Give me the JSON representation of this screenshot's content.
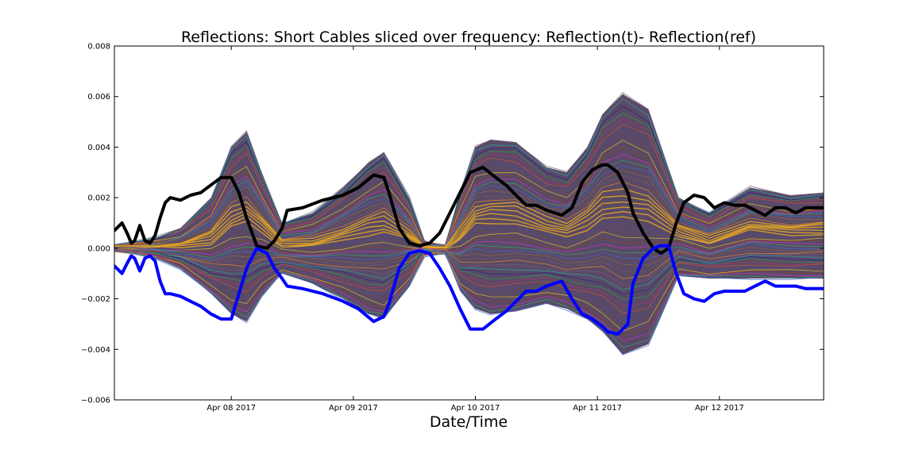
{
  "chart_data": {
    "type": "line",
    "title": "Reflections: Short Cables sliced over frequency: Reflection(t)- Reflection(ref)",
    "xlabel": "Date/Time",
    "ylabel": "",
    "x_range": [
      "2017-04-07 01:00",
      "2017-04-12 20:30"
    ],
    "ylim": [
      -0.006,
      0.008
    ],
    "y_ticks": [
      -0.006,
      -0.004,
      -0.002,
      0.0,
      0.002,
      0.004,
      0.006,
      0.008
    ],
    "y_tick_labels": [
      "−0.006",
      "−0.004",
      "−0.002",
      "0.000",
      "0.002",
      "0.004",
      "0.006",
      "0.008"
    ],
    "x_ticks": [
      {
        "x": "2017-04-08",
        "label": "Apr 08 2017"
      },
      {
        "x": "2017-04-09",
        "label": "Apr 09 2017"
      },
      {
        "x": "2017-04-10",
        "label": "Apr 10 2017"
      },
      {
        "x": "2017-04-11",
        "label": "Apr 11 2017"
      },
      {
        "x": "2017-04-12",
        "label": "Apr 12 2017"
      }
    ],
    "grid": false,
    "envelope": {
      "description": "dense band of many thin colored lines (one per frequency slice)",
      "x": [
        "2017-04-07 01:00",
        "2017-04-07 09:00",
        "2017-04-07 14:00",
        "2017-04-07 20:00",
        "2017-04-08 00:00",
        "2017-04-08 03:00",
        "2017-04-08 06:00",
        "2017-04-08 10:00",
        "2017-04-08 16:00",
        "2017-04-08 22:00",
        "2017-04-09 03:00",
        "2017-04-09 06:00",
        "2017-04-09 11:00",
        "2017-04-09 14:00",
        "2017-04-09 18:00",
        "2017-04-09 21:00",
        "2017-04-10 00:00",
        "2017-04-10 03:00",
        "2017-04-10 08:00",
        "2017-04-10 14:00",
        "2017-04-10 18:00",
        "2017-04-10 22:00",
        "2017-04-11 01:00",
        "2017-04-11 05:00",
        "2017-04-11 10:00",
        "2017-04-11 16:00",
        "2017-04-11 22:00",
        "2017-04-12 06:00",
        "2017-04-12 14:00",
        "2017-04-12 20:30"
      ],
      "upper": [
        0.0001,
        0.0004,
        0.0008,
        0.002,
        0.004,
        0.0046,
        0.003,
        0.001,
        0.0014,
        0.0024,
        0.0034,
        0.0038,
        0.002,
        0.0003,
        0.0001,
        0.0022,
        0.004,
        0.0043,
        0.0042,
        0.0032,
        0.003,
        0.004,
        0.0053,
        0.0061,
        0.0055,
        0.002,
        0.0014,
        0.0024,
        0.0021,
        0.0022
      ],
      "lower": [
        -0.0001,
        -0.0004,
        -0.0008,
        -0.0018,
        -0.0026,
        -0.0029,
        -0.0019,
        -0.001,
        -0.0014,
        -0.002,
        -0.0026,
        -0.0028,
        -0.0015,
        -0.0003,
        -0.0002,
        -0.0017,
        -0.0024,
        -0.0026,
        -0.0025,
        -0.0022,
        -0.0024,
        -0.0028,
        -0.0033,
        -0.0042,
        -0.0038,
        -0.0011,
        -0.0012,
        -0.0012,
        -0.0012,
        -0.0012
      ]
    },
    "series": [
      {
        "color": "#000000",
        "x": [
          "2017-04-07 01:00",
          "2017-04-07 01:30",
          "2017-04-07 02:30",
          "2017-04-07 03:30",
          "2017-04-07 04:20",
          "2017-04-07 05:00",
          "2017-04-07 06:00",
          "2017-04-07 07:00",
          "2017-04-07 08:00",
          "2017-04-07 09:00",
          "2017-04-07 10:00",
          "2017-04-07 11:00",
          "2017-04-07 12:00",
          "2017-04-07 14:00",
          "2017-04-07 16:00",
          "2017-04-07 18:00",
          "2017-04-07 20:00",
          "2017-04-07 22:00",
          "2017-04-08 00:00",
          "2017-04-08 01:30",
          "2017-04-08 03:00",
          "2017-04-08 05:00",
          "2017-04-08 07:00",
          "2017-04-08 08:30",
          "2017-04-08 10:00",
          "2017-04-08 11:00",
          "2017-04-08 14:00",
          "2017-04-08 18:00",
          "2017-04-08 22:00",
          "2017-04-09 01:00",
          "2017-04-09 04:00",
          "2017-04-09 06:00",
          "2017-04-09 07:00",
          "2017-04-09 09:00",
          "2017-04-09 11:00",
          "2017-04-09 13:00",
          "2017-04-09 15:00",
          "2017-04-09 17:00",
          "2017-04-09 19:00",
          "2017-04-09 21:00",
          "2017-04-09 23:00",
          "2017-04-10 01:30",
          "2017-04-10 04:00",
          "2017-04-10 06:00",
          "2017-04-10 08:00",
          "2017-04-10 10:00",
          "2017-04-10 12:00",
          "2017-04-10 14:00",
          "2017-04-10 17:00",
          "2017-04-10 19:00",
          "2017-04-10 21:00",
          "2017-04-10 23:00",
          "2017-04-11 01:00",
          "2017-04-11 02:00",
          "2017-04-11 04:00",
          "2017-04-11 06:00",
          "2017-04-11 07:00",
          "2017-04-11 09:00",
          "2017-04-11 11:00",
          "2017-04-11 12:30",
          "2017-04-11 14:00",
          "2017-04-11 15:30",
          "2017-04-11 17:00",
          "2017-04-11 19:00",
          "2017-04-11 21:00",
          "2017-04-11 23:00",
          "2017-04-12 01:00",
          "2017-04-12 03:00",
          "2017-04-12 05:00",
          "2017-04-12 07:00",
          "2017-04-12 09:00",
          "2017-04-12 11:00",
          "2017-04-12 13:00",
          "2017-04-12 15:00",
          "2017-04-12 17:00",
          "2017-04-12 19:00",
          "2017-04-12 20:30"
        ],
        "values": [
          0.0007,
          0.0008,
          0.001,
          0.0006,
          0.0002,
          0.0003,
          0.0009,
          0.0003,
          0.0002,
          0.0005,
          0.0012,
          0.0018,
          0.002,
          0.0019,
          0.0021,
          0.0022,
          0.0025,
          0.0028,
          0.0028,
          0.0022,
          0.0012,
          0.0001,
          0.0,
          0.0003,
          0.0008,
          0.0015,
          0.0016,
          0.0019,
          0.0021,
          0.0024,
          0.0029,
          0.0028,
          0.0022,
          0.0008,
          0.0002,
          0.0001,
          0.0002,
          0.0006,
          0.0014,
          0.0022,
          0.003,
          0.0032,
          0.0028,
          0.0025,
          0.0021,
          0.0017,
          0.0017,
          0.0015,
          0.0013,
          0.0016,
          0.0026,
          0.0031,
          0.0033,
          0.0033,
          0.003,
          0.0022,
          0.0014,
          0.0006,
          0.0,
          -0.0002,
          0.0,
          0.001,
          0.0018,
          0.0021,
          0.002,
          0.0016,
          0.0018,
          0.0017,
          0.0017,
          0.0015,
          0.0013,
          0.0016,
          0.0016,
          0.0014,
          0.0016,
          0.0016,
          0.0016
        ]
      },
      {
        "color": "#0000ff",
        "x": [
          "2017-04-07 01:00",
          "2017-04-07 01:30",
          "2017-04-07 02:30",
          "2017-04-07 03:30",
          "2017-04-07 04:20",
          "2017-04-07 05:00",
          "2017-04-07 06:00",
          "2017-04-07 07:00",
          "2017-04-07 08:00",
          "2017-04-07 09:00",
          "2017-04-07 10:00",
          "2017-04-07 11:00",
          "2017-04-07 12:00",
          "2017-04-07 14:00",
          "2017-04-07 16:00",
          "2017-04-07 18:00",
          "2017-04-07 20:00",
          "2017-04-07 22:00",
          "2017-04-08 00:00",
          "2017-04-08 01:30",
          "2017-04-08 03:00",
          "2017-04-08 05:00",
          "2017-04-08 07:00",
          "2017-04-08 08:30",
          "2017-04-08 10:00",
          "2017-04-08 11:00",
          "2017-04-08 14:00",
          "2017-04-08 18:00",
          "2017-04-08 22:00",
          "2017-04-09 01:00",
          "2017-04-09 04:00",
          "2017-04-09 06:00",
          "2017-04-09 07:00",
          "2017-04-09 09:00",
          "2017-04-09 11:00",
          "2017-04-09 13:00",
          "2017-04-09 15:00",
          "2017-04-09 17:00",
          "2017-04-09 19:00",
          "2017-04-09 21:00",
          "2017-04-09 23:00",
          "2017-04-10 01:30",
          "2017-04-10 04:00",
          "2017-04-10 06:00",
          "2017-04-10 08:00",
          "2017-04-10 10:00",
          "2017-04-10 12:00",
          "2017-04-10 14:00",
          "2017-04-10 17:00",
          "2017-04-10 19:00",
          "2017-04-10 21:00",
          "2017-04-10 23:00",
          "2017-04-11 01:00",
          "2017-04-11 02:00",
          "2017-04-11 04:00",
          "2017-04-11 06:00",
          "2017-04-11 07:00",
          "2017-04-11 09:00",
          "2017-04-11 11:00",
          "2017-04-11 12:30",
          "2017-04-11 14:00",
          "2017-04-11 15:30",
          "2017-04-11 17:00",
          "2017-04-11 19:00",
          "2017-04-11 21:00",
          "2017-04-11 23:00",
          "2017-04-12 01:00",
          "2017-04-12 03:00",
          "2017-04-12 05:00",
          "2017-04-12 07:00",
          "2017-04-12 09:00",
          "2017-04-12 11:00",
          "2017-04-12 13:00",
          "2017-04-12 15:00",
          "2017-04-12 17:00",
          "2017-04-12 19:00",
          "2017-04-12 20:30"
        ],
        "values": [
          -0.0007,
          -0.0008,
          -0.001,
          -0.0006,
          -0.0003,
          -0.0004,
          -0.0009,
          -0.0004,
          -0.0003,
          -0.0005,
          -0.0013,
          -0.0018,
          -0.0018,
          -0.0019,
          -0.0021,
          -0.0023,
          -0.0026,
          -0.0028,
          -0.0028,
          -0.0018,
          -0.0008,
          0.0,
          -0.0002,
          -0.0008,
          -0.0012,
          -0.0015,
          -0.0016,
          -0.0018,
          -0.0021,
          -0.0024,
          -0.0029,
          -0.0027,
          -0.0022,
          -0.0008,
          -0.0002,
          -0.0001,
          -0.0002,
          -0.0008,
          -0.0015,
          -0.0024,
          -0.0032,
          -0.0032,
          -0.0028,
          -0.0025,
          -0.0021,
          -0.0017,
          -0.0017,
          -0.0015,
          -0.0013,
          -0.002,
          -0.0026,
          -0.0028,
          -0.0031,
          -0.0033,
          -0.0034,
          -0.003,
          -0.0014,
          -0.0004,
          0.0,
          0.0001,
          0.0001,
          -0.001,
          -0.0018,
          -0.002,
          -0.0021,
          -0.0018,
          -0.0017,
          -0.0017,
          -0.0017,
          -0.0015,
          -0.0013,
          -0.0015,
          -0.0015,
          -0.0015,
          -0.0016,
          -0.0016,
          -0.0016
        ]
      }
    ]
  }
}
